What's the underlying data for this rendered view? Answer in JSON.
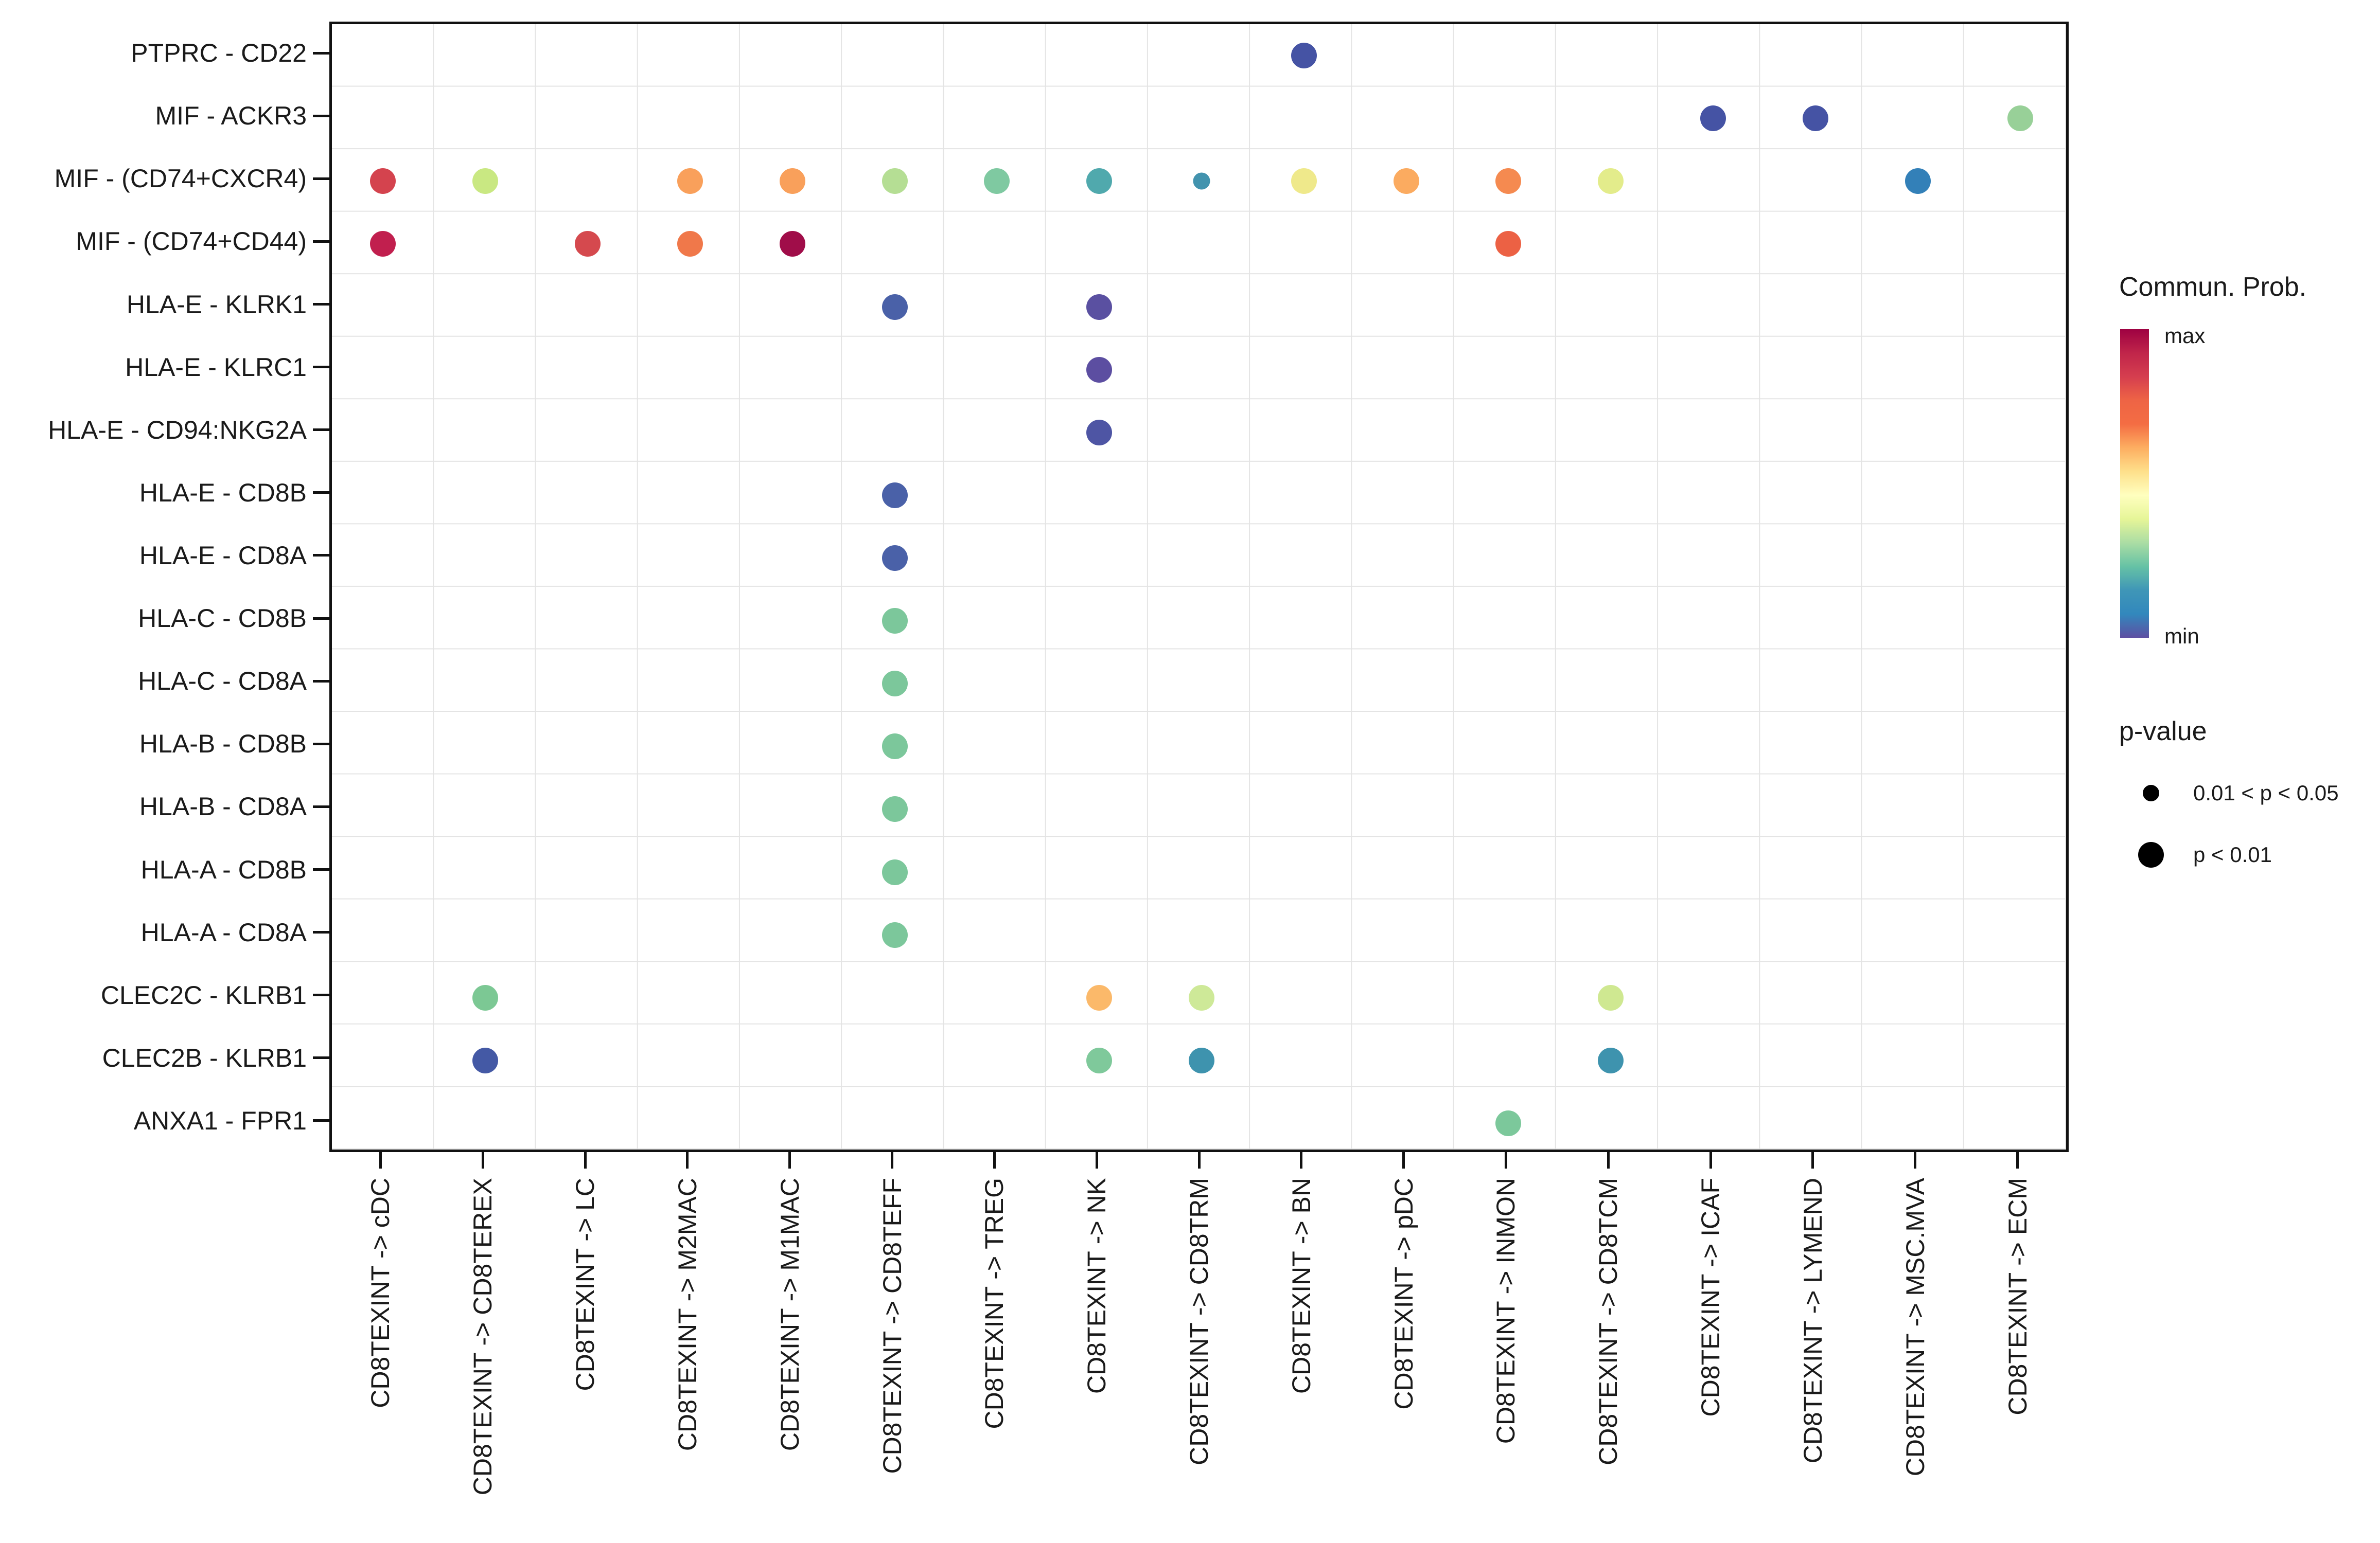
{
  "chart_data": {
    "type": "scatter",
    "subtype": "dotplot-bubble",
    "title": "",
    "xlabel": "",
    "ylabel": "",
    "grid": true,
    "x_categories": [
      "CD8TEXINT -> cDC",
      "CD8TEXINT -> CD8TEREX",
      "CD8TEXINT -> LC",
      "CD8TEXINT -> M2MAC",
      "CD8TEXINT -> M1MAC",
      "CD8TEXINT -> CD8TEFF",
      "CD8TEXINT -> TREG",
      "CD8TEXINT -> NK",
      "CD8TEXINT -> CD8TRM",
      "CD8TEXINT -> BN",
      "CD8TEXINT -> pDC",
      "CD8TEXINT -> INMON",
      "CD8TEXINT -> CD8TCM",
      "CD8TEXINT -> ICAF",
      "CD8TEXINT -> LYMEND",
      "CD8TEXINT -> MSC.MVA",
      "CD8TEXINT -> ECM"
    ],
    "y_categories": [
      "PTPRC - CD22",
      "MIF - ACKR3",
      "MIF - (CD74+CXCR4)",
      "MIF - (CD74+CD44)",
      "HLA-E - KLRK1",
      "HLA-E - KLRC1",
      "HLA-E - CD94:NKG2A",
      "HLA-E - CD8B",
      "HLA-E - CD8A",
      "HLA-C - CD8B",
      "HLA-C - CD8A",
      "HLA-B - CD8B",
      "HLA-B - CD8A",
      "HLA-A - CD8B",
      "HLA-A - CD8A",
      "CLEC2C - KLRB1",
      "CLEC2B - KLRB1",
      "ANXA1 - FPR1"
    ],
    "points": [
      {
        "y": "PTPRC - CD22",
        "x": "CD8TEXINT -> BN",
        "color": "#4553a4",
        "pvalue": "p < 0.01"
      },
      {
        "y": "MIF - ACKR3",
        "x": "CD8TEXINT -> ICAF",
        "color": "#4553a4",
        "pvalue": "p < 0.01"
      },
      {
        "y": "MIF - ACKR3",
        "x": "CD8TEXINT -> LYMEND",
        "color": "#4553a4",
        "pvalue": "p < 0.01"
      },
      {
        "y": "MIF - ACKR3",
        "x": "CD8TEXINT -> ECM",
        "color": "#98d098",
        "pvalue": "p < 0.01"
      },
      {
        "y": "MIF - (CD74+CXCR4)",
        "x": "CD8TEXINT -> cDC",
        "color": "#d4434e",
        "pvalue": "p < 0.01"
      },
      {
        "y": "MIF - (CD74+CXCR4)",
        "x": "CD8TEXINT -> CD8TEREX",
        "color": "#c9e882",
        "pvalue": "p < 0.01"
      },
      {
        "y": "MIF - (CD74+CXCR4)",
        "x": "CD8TEXINT -> M2MAC",
        "color": "#f9a05b",
        "pvalue": "p < 0.01"
      },
      {
        "y": "MIF - (CD74+CXCR4)",
        "x": "CD8TEXINT -> M1MAC",
        "color": "#f9a05b",
        "pvalue": "p < 0.01"
      },
      {
        "y": "MIF - (CD74+CXCR4)",
        "x": "CD8TEXINT -> CD8TEFF",
        "color": "#b5de94",
        "pvalue": "p < 0.01"
      },
      {
        "y": "MIF - (CD74+CXCR4)",
        "x": "CD8TEXINT -> TREG",
        "color": "#7fc9a1",
        "pvalue": "p < 0.01"
      },
      {
        "y": "MIF - (CD74+CXCR4)",
        "x": "CD8TEXINT -> NK",
        "color": "#50a9ad",
        "pvalue": "p < 0.01"
      },
      {
        "y": "MIF - (CD74+CXCR4)",
        "x": "CD8TEXINT -> CD8TRM",
        "color": "#4293ae",
        "pvalue": "0.01 < p < 0.05"
      },
      {
        "y": "MIF - (CD74+CXCR4)",
        "x": "CD8TEXINT -> BN",
        "color": "#efe98b",
        "pvalue": "p < 0.01"
      },
      {
        "y": "MIF - (CD74+CXCR4)",
        "x": "CD8TEXINT -> pDC",
        "color": "#fbab60",
        "pvalue": "p < 0.01"
      },
      {
        "y": "MIF - (CD74+CXCR4)",
        "x": "CD8TEXINT -> INMON",
        "color": "#f58a50",
        "pvalue": "p < 0.01"
      },
      {
        "y": "MIF - (CD74+CXCR4)",
        "x": "CD8TEXINT -> CD8TCM",
        "color": "#e3ec8b",
        "pvalue": "p < 0.01"
      },
      {
        "y": "MIF - (CD74+CXCR4)",
        "x": "CD8TEXINT -> MSC.MVA",
        "color": "#3380b8",
        "pvalue": "p < 0.01"
      },
      {
        "y": "MIF - (CD74+CD44)",
        "x": "CD8TEXINT -> cDC",
        "color": "#c11f4e",
        "pvalue": "p < 0.01"
      },
      {
        "y": "MIF - (CD74+CD44)",
        "x": "CD8TEXINT -> LC",
        "color": "#d5494e",
        "pvalue": "p < 0.01"
      },
      {
        "y": "MIF - (CD74+CD44)",
        "x": "CD8TEXINT -> M2MAC",
        "color": "#f0784a",
        "pvalue": "p < 0.01"
      },
      {
        "y": "MIF - (CD74+CD44)",
        "x": "CD8TEXINT -> M1MAC",
        "color": "#a00d49",
        "pvalue": "p < 0.01"
      },
      {
        "y": "MIF - (CD74+CD44)",
        "x": "CD8TEXINT -> INMON",
        "color": "#ec6144",
        "pvalue": "p < 0.01"
      },
      {
        "y": "HLA-E - KLRK1",
        "x": "CD8TEXINT -> CD8TEFF",
        "color": "#4a61a8",
        "pvalue": "p < 0.01"
      },
      {
        "y": "HLA-E - KLRK1",
        "x": "CD8TEXINT -> NK",
        "color": "#5a50a1",
        "pvalue": "p < 0.01"
      },
      {
        "y": "HLA-E - KLRC1",
        "x": "CD8TEXINT -> NK",
        "color": "#5c4ea1",
        "pvalue": "p < 0.01"
      },
      {
        "y": "HLA-E - CD94:NKG2A",
        "x": "CD8TEXINT -> NK",
        "color": "#4e55a4",
        "pvalue": "p < 0.01"
      },
      {
        "y": "HLA-E - CD8B",
        "x": "CD8TEXINT -> CD8TEFF",
        "color": "#4a61a8",
        "pvalue": "p < 0.01"
      },
      {
        "y": "HLA-E - CD8A",
        "x": "CD8TEXINT -> CD8TEFF",
        "color": "#4a61a8",
        "pvalue": "p < 0.01"
      },
      {
        "y": "HLA-C - CD8B",
        "x": "CD8TEXINT -> CD8TEFF",
        "color": "#7cc79b",
        "pvalue": "p < 0.01"
      },
      {
        "y": "HLA-C - CD8A",
        "x": "CD8TEXINT -> CD8TEFF",
        "color": "#7cc79b",
        "pvalue": "p < 0.01"
      },
      {
        "y": "HLA-B - CD8B",
        "x": "CD8TEXINT -> CD8TEFF",
        "color": "#7cc79b",
        "pvalue": "p < 0.01"
      },
      {
        "y": "HLA-B - CD8A",
        "x": "CD8TEXINT -> CD8TEFF",
        "color": "#7cc79b",
        "pvalue": "p < 0.01"
      },
      {
        "y": "HLA-A - CD8B",
        "x": "CD8TEXINT -> CD8TEFF",
        "color": "#7cc79b",
        "pvalue": "p < 0.01"
      },
      {
        "y": "HLA-A - CD8A",
        "x": "CD8TEXINT -> CD8TEFF",
        "color": "#7cc79b",
        "pvalue": "p < 0.01"
      },
      {
        "y": "CLEC2C - KLRB1",
        "x": "CD8TEXINT -> CD8TEREX",
        "color": "#7cc894",
        "pvalue": "p < 0.01"
      },
      {
        "y": "CLEC2C - KLRB1",
        "x": "CD8TEXINT -> NK",
        "color": "#fbb96a",
        "pvalue": "p < 0.01"
      },
      {
        "y": "CLEC2C - KLRB1",
        "x": "CD8TEXINT -> CD8TRM",
        "color": "#cee998",
        "pvalue": "p < 0.01"
      },
      {
        "y": "CLEC2C - KLRB1",
        "x": "CD8TEXINT -> CD8TCM",
        "color": "#cfe891",
        "pvalue": "p < 0.01"
      },
      {
        "y": "CLEC2B - KLRB1",
        "x": "CD8TEXINT -> CD8TEREX",
        "color": "#4459a5",
        "pvalue": "p < 0.01"
      },
      {
        "y": "CLEC2B - KLRB1",
        "x": "CD8TEXINT -> NK",
        "color": "#7fc99b",
        "pvalue": "p < 0.01"
      },
      {
        "y": "CLEC2B - KLRB1",
        "x": "CD8TEXINT -> CD8TRM",
        "color": "#3e93ae",
        "pvalue": "p < 0.01"
      },
      {
        "y": "CLEC2B - KLRB1",
        "x": "CD8TEXINT -> CD8TCM",
        "color": "#3e93ae",
        "pvalue": "p < 0.01"
      },
      {
        "y": "ANXA1 - FPR1",
        "x": "CD8TEXINT -> INMON",
        "color": "#7cc89b",
        "pvalue": "p < 0.01"
      }
    ],
    "legend": {
      "colorbar": {
        "title": "Commun. Prob.",
        "max_label": "max",
        "min_label": "min",
        "gradient_top_to_bottom": [
          "#9e0142",
          "#c0254a",
          "#d53e4f",
          "#ee6445",
          "#f46d43",
          "#fdae61",
          "#fee08b",
          "#ffffbf",
          "#e6f598",
          "#abdda4",
          "#66c2a5",
          "#3f96b7",
          "#3288bd",
          "#5e4fa2"
        ]
      },
      "pvalue": {
        "title": "p-value",
        "items": [
          {
            "label": "0.01 < p < 0.05",
            "size": "small"
          },
          {
            "label": "p < 0.01",
            "size": "big"
          }
        ]
      }
    }
  }
}
